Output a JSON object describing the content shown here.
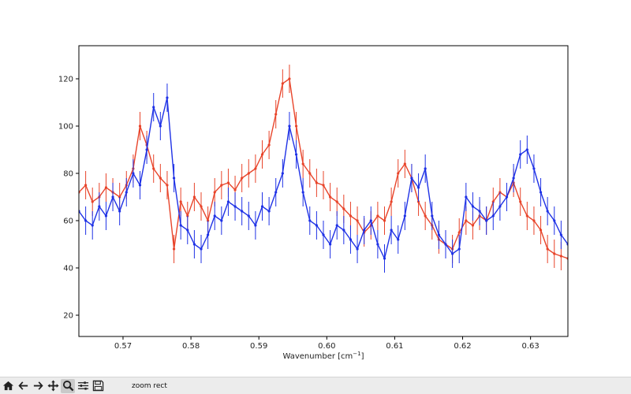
{
  "toolbar": {
    "buttons": [
      {
        "icon": "home-icon",
        "label": "Home"
      },
      {
        "icon": "back-arrow-icon",
        "label": "Back"
      },
      {
        "icon": "forward-arrow-icon",
        "label": "Forward"
      },
      {
        "icon": "pan-icon",
        "label": "Pan"
      },
      {
        "icon": "zoom-icon",
        "label": "Zoom"
      },
      {
        "icon": "configure-subplots-icon",
        "label": "Subplots"
      },
      {
        "icon": "save-icon",
        "label": "Save"
      }
    ],
    "status": "zoom rect"
  },
  "colors": {
    "red_series": "#e8442a",
    "blue_series": "#1f32e6",
    "axes": "#000000",
    "toolbar_bg": "#ececec"
  },
  "chart_data": {
    "type": "line",
    "title": "",
    "xlabel": "Wavenumber [cm",
    "xlabel_sup": "−1",
    "xlabel_tail": "]",
    "ylabel": "",
    "xlim": [
      0.5635,
      0.6355
    ],
    "ylim": [
      11,
      134
    ],
    "x_ticks": [
      0.57,
      0.58,
      0.59,
      0.6,
      0.61,
      0.62,
      0.63
    ],
    "x_tick_labels": [
      "0.57",
      "0.58",
      "0.59",
      "0.60",
      "0.61",
      "0.62",
      "0.63"
    ],
    "y_ticks": [
      20,
      40,
      60,
      80,
      100,
      120
    ],
    "y_tick_labels": [
      "20",
      "40",
      "60",
      "80",
      "100",
      "120"
    ],
    "grid": false,
    "legend": "none",
    "error_bars": true,
    "series": [
      {
        "color": "#e8442a",
        "error": 6,
        "x": [
          0.5635,
          0.5645,
          0.5655,
          0.5665,
          0.5675,
          0.5685,
          0.5695,
          0.5705,
          0.5715,
          0.5725,
          0.5735,
          0.5745,
          0.5755,
          0.5765,
          0.5775,
          0.5785,
          0.5795,
          0.5805,
          0.5815,
          0.5825,
          0.5835,
          0.5845,
          0.5855,
          0.5865,
          0.5875,
          0.5885,
          0.5895,
          0.5905,
          0.5915,
          0.5925,
          0.5935,
          0.5945,
          0.5955,
          0.5965,
          0.5975,
          0.5985,
          0.5995,
          0.6005,
          0.6015,
          0.6025,
          0.6035,
          0.6045,
          0.6055,
          0.6065,
          0.6075,
          0.6085,
          0.6095,
          0.6105,
          0.6115,
          0.6125,
          0.6135,
          0.6145,
          0.6155,
          0.6165,
          0.6175,
          0.6185,
          0.6195,
          0.6205,
          0.6215,
          0.6225,
          0.6235,
          0.6245,
          0.6255,
          0.6265,
          0.6275,
          0.6285,
          0.6295,
          0.6305,
          0.6315,
          0.6325,
          0.6335,
          0.6345,
          0.6355
        ],
        "y": [
          72,
          75,
          68,
          70,
          74,
          72,
          70,
          75,
          82,
          100,
          92,
          82,
          78,
          75,
          48,
          68,
          62,
          70,
          66,
          60,
          72,
          75,
          76,
          73,
          78,
          80,
          82,
          88,
          92,
          105,
          118,
          120,
          100,
          84,
          80,
          76,
          75,
          70,
          68,
          65,
          62,
          60,
          55,
          58,
          62,
          60,
          68,
          80,
          84,
          78,
          68,
          62,
          58,
          52,
          50,
          48,
          55,
          60,
          58,
          62,
          60,
          68,
          72,
          70,
          76,
          68,
          62,
          60,
          56,
          48,
          46,
          45,
          44
        ]
      },
      {
        "color": "#1f32e6",
        "error": 6,
        "x": [
          0.5635,
          0.5645,
          0.5655,
          0.5665,
          0.5675,
          0.5685,
          0.5695,
          0.5705,
          0.5715,
          0.5725,
          0.5735,
          0.5745,
          0.5755,
          0.5765,
          0.5775,
          0.5785,
          0.5795,
          0.5805,
          0.5815,
          0.5825,
          0.5835,
          0.5845,
          0.5855,
          0.5865,
          0.5875,
          0.5885,
          0.5895,
          0.5905,
          0.5915,
          0.5925,
          0.5935,
          0.5945,
          0.5955,
          0.5965,
          0.5975,
          0.5985,
          0.5995,
          0.6005,
          0.6015,
          0.6025,
          0.6035,
          0.6045,
          0.6055,
          0.6065,
          0.6075,
          0.6085,
          0.6095,
          0.6105,
          0.6115,
          0.6125,
          0.6135,
          0.6145,
          0.6155,
          0.6165,
          0.6175,
          0.6185,
          0.6195,
          0.6205,
          0.6215,
          0.6225,
          0.6235,
          0.6245,
          0.6255,
          0.6265,
          0.6275,
          0.6285,
          0.6295,
          0.6305,
          0.6315,
          0.6325,
          0.6335,
          0.6345,
          0.6355
        ],
        "y": [
          64,
          60,
          58,
          66,
          62,
          70,
          64,
          72,
          80,
          75,
          90,
          108,
          100,
          112,
          78,
          58,
          56,
          50,
          48,
          54,
          62,
          60,
          68,
          66,
          64,
          62,
          58,
          66,
          64,
          72,
          80,
          100,
          88,
          72,
          60,
          58,
          54,
          50,
          58,
          56,
          52,
          48,
          56,
          60,
          50,
          44,
          56,
          52,
          62,
          78,
          74,
          82,
          62,
          54,
          50,
          46,
          48,
          70,
          66,
          64,
          60,
          62,
          66,
          70,
          78,
          88,
          90,
          82,
          72,
          64,
          60,
          54,
          50
        ]
      }
    ]
  }
}
